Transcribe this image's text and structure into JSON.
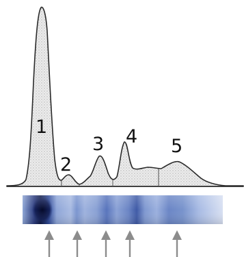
{
  "peaks": [
    {
      "label": "1"
    },
    {
      "label": "2"
    },
    {
      "label": "3"
    },
    {
      "label": "4"
    },
    {
      "label": "5"
    }
  ],
  "colors": {
    "trace": "#2a2a2a",
    "trace_fill": "#e6e6e6",
    "band_dark": "#141e4a",
    "band_mid": "#3c5aa8",
    "band_light": "#b4c4e6",
    "arrow": "#8c8c8c"
  }
}
